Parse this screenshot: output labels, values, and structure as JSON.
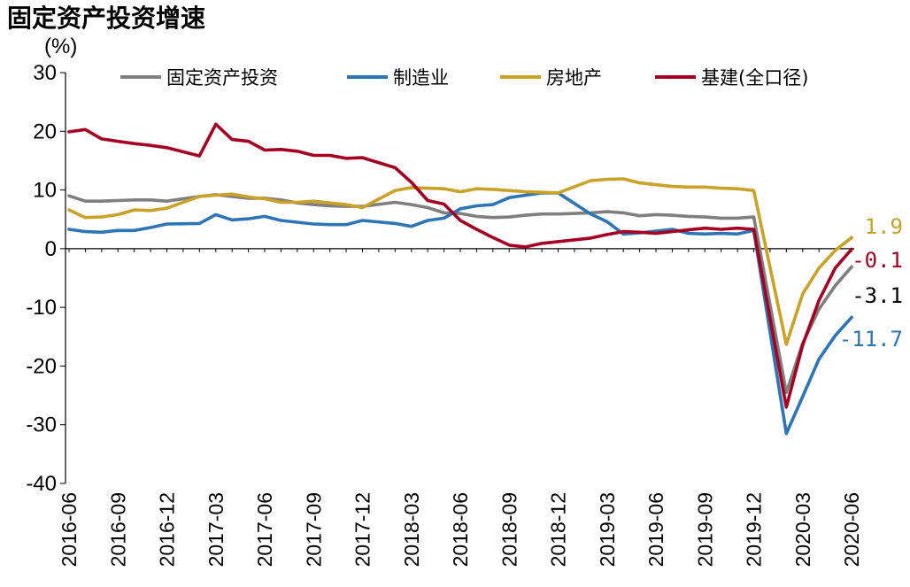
{
  "chart_data": {
    "type": "line",
    "title": "固定资产投资增速",
    "ylabel": "(%)",
    "xlabel": "",
    "ylim": [
      -40,
      30
    ],
    "yticks": [
      30,
      20,
      10,
      0,
      -10,
      -20,
      -30,
      -40
    ],
    "xtick_labels": [
      "2016-06",
      "2016-09",
      "2016-12",
      "2017-03",
      "2017-06",
      "2017-09",
      "2017-12",
      "2018-03",
      "2018-06",
      "2018-09",
      "2018-12",
      "2019-03",
      "2019-06",
      "2019-09",
      "2019-12",
      "2020-03",
      "2020-06"
    ],
    "x": [
      "2016-06",
      "2016-07",
      "2016-08",
      "2016-09",
      "2016-10",
      "2016-11",
      "2016-12",
      "2017-01",
      "2017-02",
      "2017-03",
      "2017-04",
      "2017-05",
      "2017-06",
      "2017-07",
      "2017-08",
      "2017-09",
      "2017-10",
      "2017-11",
      "2017-12",
      "2018-01",
      "2018-02",
      "2018-03",
      "2018-04",
      "2018-05",
      "2018-06",
      "2018-07",
      "2018-08",
      "2018-09",
      "2018-10",
      "2018-11",
      "2018-12",
      "2019-01",
      "2019-02",
      "2019-03",
      "2019-04",
      "2019-05",
      "2019-06",
      "2019-07",
      "2019-08",
      "2019-09",
      "2019-10",
      "2019-11",
      "2019-12",
      "2020-01",
      "2020-02",
      "2020-03",
      "2020-04",
      "2020-05",
      "2020-06"
    ],
    "series": [
      {
        "name": "固定资产投资",
        "color": "#7f7f7f",
        "end_label": "-3.1",
        "values": [
          9.0,
          8.1,
          8.1,
          8.2,
          8.3,
          8.3,
          8.1,
          null,
          8.9,
          9.2,
          8.9,
          8.6,
          8.6,
          8.3,
          7.8,
          7.5,
          7.3,
          7.2,
          7.2,
          null,
          7.9,
          7.5,
          7.0,
          6.1,
          6.0,
          5.5,
          5.3,
          5.4,
          5.7,
          5.9,
          5.9,
          null,
          6.1,
          6.3,
          6.1,
          5.6,
          5.8,
          5.7,
          5.5,
          5.4,
          5.2,
          5.2,
          5.4,
          null,
          -24.5,
          -16.1,
          -10.3,
          -6.3,
          -3.1
        ]
      },
      {
        "name": "制造业",
        "color": "#2e75b6",
        "end_label": "-11.7",
        "values": [
          3.3,
          2.9,
          2.8,
          3.1,
          3.1,
          3.6,
          4.2,
          null,
          4.3,
          5.8,
          4.9,
          5.1,
          5.5,
          4.8,
          4.5,
          4.2,
          4.1,
          4.1,
          4.8,
          null,
          4.3,
          3.8,
          4.8,
          5.2,
          6.8,
          7.3,
          7.5,
          8.7,
          9.1,
          9.5,
          9.5,
          null,
          5.9,
          4.6,
          2.5,
          2.7,
          3.0,
          3.3,
          2.6,
          2.5,
          2.6,
          2.5,
          3.1,
          null,
          -31.5,
          -25.2,
          -18.8,
          -14.8,
          -11.7
        ]
      },
      {
        "name": "房地产",
        "color": "#c9a227",
        "end_label": "1.9",
        "values": [
          6.6,
          5.3,
          5.4,
          5.8,
          6.6,
          6.5,
          6.9,
          null,
          8.9,
          9.1,
          9.3,
          8.8,
          8.5,
          7.9,
          7.9,
          8.1,
          7.8,
          7.5,
          7.0,
          null,
          9.9,
          10.4,
          10.3,
          10.2,
          9.7,
          10.2,
          10.1,
          9.9,
          9.7,
          9.6,
          9.5,
          null,
          11.6,
          11.8,
          11.9,
          11.2,
          10.9,
          10.6,
          10.5,
          10.5,
          10.3,
          10.2,
          9.9,
          null,
          -16.3,
          -7.7,
          -3.3,
          -0.3,
          1.9
        ]
      },
      {
        "name": "基建(全口径)",
        "color": "#a50021",
        "end_label": "-0.1",
        "values": [
          19.9,
          20.3,
          18.7,
          18.3,
          17.9,
          17.6,
          17.2,
          null,
          15.8,
          21.2,
          18.6,
          18.3,
          16.8,
          16.9,
          16.6,
          15.9,
          15.9,
          15.4,
          15.5,
          null,
          13.8,
          11.3,
          8.2,
          7.6,
          4.8,
          3.3,
          1.9,
          0.6,
          0.3,
          0.9,
          1.2,
          null,
          1.8,
          2.4,
          2.9,
          2.8,
          2.6,
          2.9,
          3.2,
          3.5,
          3.3,
          3.5,
          3.3,
          null,
          -27.0,
          -16.4,
          -8.8,
          -3.3,
          -0.1
        ]
      }
    ]
  }
}
